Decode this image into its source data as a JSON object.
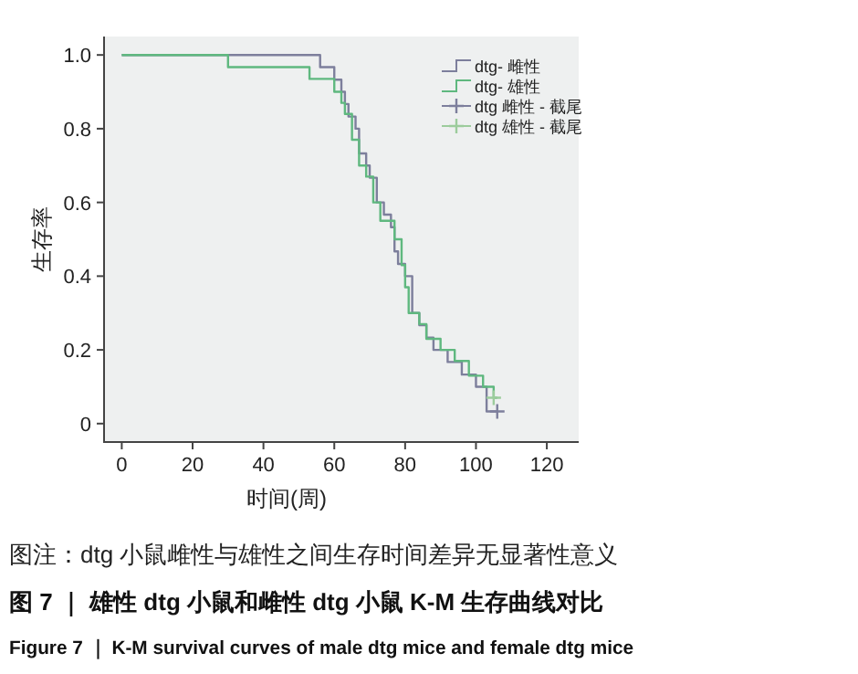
{
  "chart_data": {
    "type": "step",
    "title": "图 7 ｜ 雄性 dtg 小鼠和雌性 dtg 小鼠 K-M 生存曲线对比",
    "subtitle": "Figure 7 ｜ K-M survival curves of male dtg mice and female dtg mice",
    "annotations": [
      "图注：dtg 小鼠雌性与雄性之间生存时间差异无显著性意义"
    ],
    "xlabel": "时间(周)",
    "ylabel": "生存率",
    "xlim": [
      -5,
      129
    ],
    "ylim": [
      -0.05,
      1.05
    ],
    "xticks": [
      0,
      20,
      40,
      60,
      80,
      100,
      120
    ],
    "yticks": [
      {
        "value": 0,
        "label": "0"
      },
      0.2,
      0.4,
      0.6,
      0.8,
      {
        "value": 1,
        "label": "1.0"
      }
    ],
    "grid": false,
    "legend": "top right",
    "line_style": "solid",
    "series": [
      {
        "name": "dtg- 雌性",
        "type": "step",
        "color": "#7d7f9c",
        "x": [
          0,
          56,
          60,
          62,
          63,
          64,
          66,
          67,
          69,
          70,
          72,
          74,
          76,
          77,
          78,
          80,
          82,
          84,
          86,
          88,
          92,
          96,
          100,
          103,
          106
        ],
        "values": [
          1.0,
          0.967,
          0.933,
          0.9,
          0.867,
          0.833,
          0.8,
          0.733,
          0.7,
          0.667,
          0.6,
          0.567,
          0.533,
          0.467,
          0.433,
          0.4,
          0.3,
          0.267,
          0.233,
          0.2,
          0.167,
          0.133,
          0.1,
          0.033,
          0.033
        ]
      },
      {
        "name": "dtg- 雄性",
        "type": "step",
        "color": "#5fb87f",
        "x": [
          0,
          30,
          53,
          60,
          62,
          63,
          65,
          67,
          69,
          71,
          73,
          77,
          79,
          80,
          81,
          84,
          86,
          90,
          94,
          98,
          102,
          105,
          106
        ],
        "values": [
          1.0,
          0.967,
          0.935,
          0.9,
          0.87,
          0.84,
          0.77,
          0.7,
          0.67,
          0.6,
          0.55,
          0.5,
          0.43,
          0.37,
          0.3,
          0.27,
          0.23,
          0.2,
          0.17,
          0.13,
          0.1,
          0.07,
          0.07
        ]
      },
      {
        "name": "dtg 雌性 - 截尾",
        "type": "scatter",
        "marker": "cross",
        "color": "#7d7f9c",
        "x": [
          106
        ],
        "values": [
          0.033
        ]
      },
      {
        "name": "dtg 雄性 - 截尾",
        "type": "scatter",
        "marker": "cross",
        "color": "#9ccc9c",
        "x": [
          105
        ],
        "values": [
          0.07
        ]
      }
    ]
  }
}
